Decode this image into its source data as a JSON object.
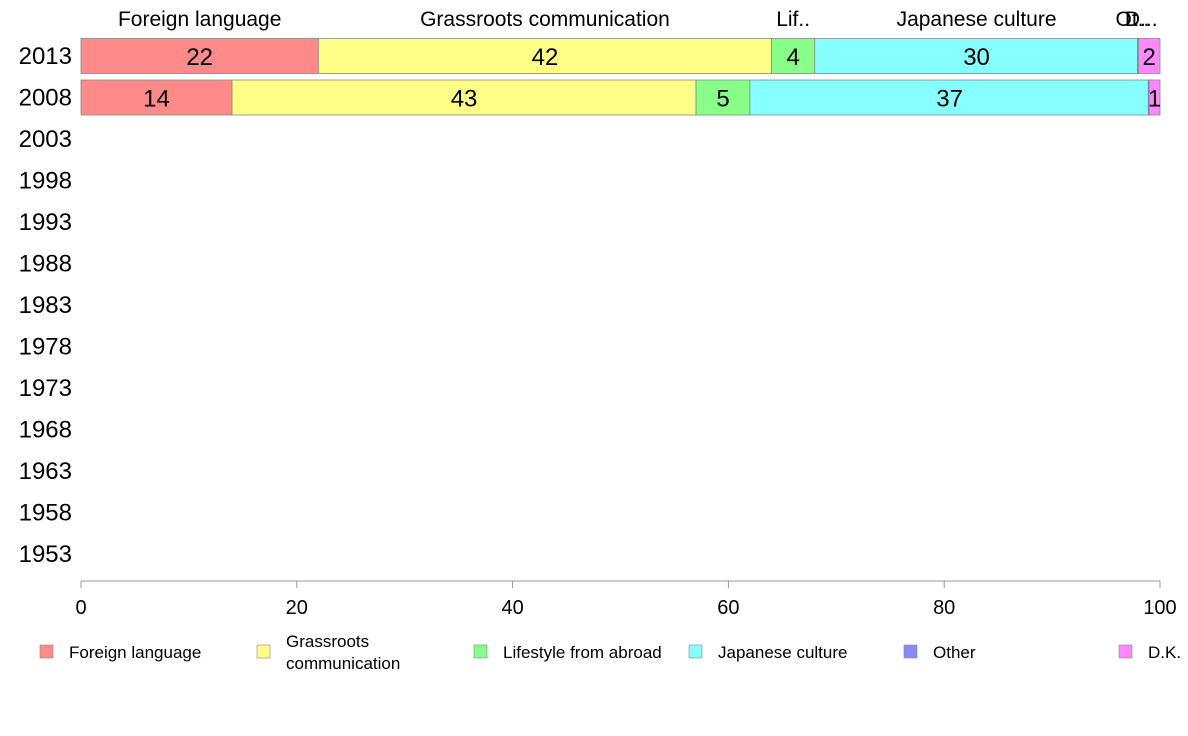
{
  "chart_data": {
    "type": "bar",
    "orientation": "horizontal",
    "stacked": true,
    "title": "",
    "xlabel": "",
    "ylabel": "",
    "xlim": [
      0,
      100
    ],
    "x_ticks": [
      0,
      20,
      40,
      60,
      80,
      100
    ],
    "categories": [
      "2013",
      "2008",
      "2003",
      "1998",
      "1993",
      "1988",
      "1983",
      "1978",
      "1973",
      "1968",
      "1963",
      "1958",
      "1953"
    ],
    "series": [
      {
        "name": "Foreign language",
        "color": "#ff8a8a",
        "values": [
          22,
          14,
          null,
          null,
          null,
          null,
          null,
          null,
          null,
          null,
          null,
          null,
          null
        ]
      },
      {
        "name": "Grassroots communication",
        "color": "#ffff88",
        "values": [
          42,
          43,
          null,
          null,
          null,
          null,
          null,
          null,
          null,
          null,
          null,
          null,
          null
        ]
      },
      {
        "name": "Lifestyle from abroad",
        "color": "#88ff88",
        "values": [
          4,
          5,
          null,
          null,
          null,
          null,
          null,
          null,
          null,
          null,
          null,
          null,
          null
        ]
      },
      {
        "name": "Japanese culture",
        "color": "#88ffff",
        "values": [
          30,
          37,
          null,
          null,
          null,
          null,
          null,
          null,
          null,
          null,
          null,
          null,
          null
        ]
      },
      {
        "name": "Other",
        "color": "#8888ff",
        "values": [
          0,
          0,
          null,
          null,
          null,
          null,
          null,
          null,
          null,
          null,
          null,
          null,
          null
        ]
      },
      {
        "name": "D.K.",
        "color": "#ff88ff",
        "values": [
          2,
          1,
          null,
          null,
          null,
          null,
          null,
          null,
          null,
          null,
          null,
          null,
          null
        ]
      }
    ],
    "top_labels": [
      "Foreign language",
      "Grassroots communication",
      "Lif..",
      "Japanese culture",
      "Ot..",
      "D..."
    ],
    "data_labels": {
      "2013": [
        "22",
        "42",
        "4",
        "30",
        "",
        "2"
      ],
      "2008": [
        "14",
        "43",
        "5",
        "37",
        "",
        "1"
      ]
    },
    "legend": {
      "position": "bottom",
      "entries": [
        [
          "Foreign language"
        ],
        [
          "Grassroots",
          "communication"
        ],
        [
          "Lifestyle from abroad"
        ],
        [
          "Japanese culture"
        ],
        [
          "Other"
        ],
        [
          "D.K."
        ]
      ]
    },
    "grid": false
  }
}
